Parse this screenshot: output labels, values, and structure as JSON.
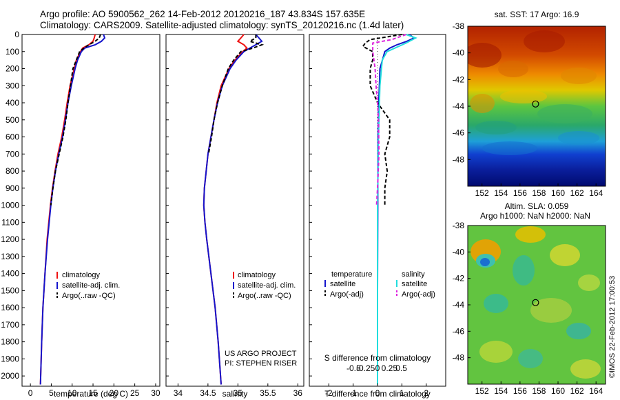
{
  "header": {
    "line1": "Argo profile: AO 5900562_262 14-Feb-2012 20120216_187 43.834S 157.635E",
    "line2": "Climatology: CARS2009. Satellite-adjusted climatology: synTS_20120216.nc (1.4d later)"
  },
  "depth_axis": {
    "ticks": [
      0,
      100,
      200,
      300,
      400,
      500,
      600,
      700,
      800,
      900,
      1000,
      1100,
      1200,
      1300,
      1400,
      1500,
      1600,
      1700,
      1800,
      1900,
      2000
    ],
    "range": [
      0,
      2060
    ]
  },
  "colors": {
    "climatology": "#ee1111",
    "satellite": "#1515cc",
    "argo": "#000000",
    "argo_adj": "#dd22dd",
    "sat_sal": "#22dddd"
  },
  "chart_data": [
    {
      "id": "temperature",
      "type": "line",
      "xlabel": "temperature (deg C)",
      "xlim": [
        -2,
        31
      ],
      "xticks": [
        0,
        5,
        10,
        15,
        20,
        25,
        30
      ],
      "legend": {
        "placement": "middle-right",
        "items": [
          "climatology",
          "satellite-adj. clim.",
          "Argo(..raw -QC)"
        ]
      },
      "series": [
        {
          "name": "climatology",
          "color": "#ee1111",
          "depth": [
            0,
            20,
            40,
            60,
            80,
            100,
            150,
            200,
            300,
            400,
            500,
            600,
            700,
            800,
            900,
            1000,
            1200,
            1400,
            1600,
            1800,
            2050
          ],
          "values": [
            15.5,
            15.3,
            15,
            14,
            12.5,
            12,
            11,
            10.5,
            9.5,
            8.8,
            8.2,
            7.5,
            6.6,
            5.9,
            5.3,
            4.8,
            4,
            3.5,
            3,
            2.7,
            2.4
          ]
        },
        {
          "name": "satellite-adj. clim.",
          "color": "#1515cc",
          "depth": [
            0,
            20,
            40,
            60,
            80,
            100,
            150,
            200,
            300,
            400,
            500,
            600,
            700,
            800,
            900,
            1000,
            1200,
            1400,
            1600,
            1800,
            2050
          ],
          "values": [
            17.5,
            17.8,
            17,
            15.5,
            13,
            12.2,
            11.3,
            10.7,
            9.8,
            9,
            8.4,
            7.7,
            6.8,
            6,
            5.4,
            4.9,
            4.1,
            3.5,
            3,
            2.7,
            2.4
          ]
        },
        {
          "name": "Argo(..raw -QC)",
          "color": "#000000",
          "dashed": true,
          "depth": [
            0,
            20,
            40,
            60,
            80,
            100,
            150,
            200,
            300,
            400,
            500,
            600,
            700,
            800,
            900,
            1000
          ],
          "values": [
            16.8,
            16.5,
            15.5,
            14,
            12.8,
            11.8,
            11,
            10.2,
            9.6,
            9,
            8.5,
            7.8,
            6.9,
            6,
            5.4,
            4.9
          ]
        }
      ]
    },
    {
      "id": "salinity",
      "type": "line",
      "xlabel": "salinity",
      "xlim": [
        33.8,
        36.1
      ],
      "xticks": [
        34,
        34.5,
        35,
        35.5,
        36
      ],
      "xticklabels": [
        "34",
        "34.5",
        "35",
        "35.5",
        "36"
      ],
      "legend": {
        "placement": "middle-right",
        "items": [
          "climatology",
          "satellite-adj. clim.",
          "Argo(..raw -QC)"
        ]
      },
      "credit": [
        "US ARGO PROJECT",
        "PI: STEPHEN RISER"
      ],
      "series": [
        {
          "name": "climatology",
          "color": "#ee1111",
          "depth": [
            0,
            20,
            40,
            60,
            80,
            100,
            150,
            200,
            300,
            400,
            500,
            600,
            700,
            800,
            900,
            1000,
            1100,
            1200,
            1400,
            1600,
            1800,
            2050
          ],
          "values": [
            35.1,
            35.05,
            35.0,
            35.1,
            35.15,
            35.08,
            34.95,
            34.85,
            34.72,
            34.65,
            34.6,
            34.55,
            34.5,
            34.47,
            34.44,
            34.43,
            34.45,
            34.48,
            34.55,
            34.62,
            34.67,
            34.72
          ]
        },
        {
          "name": "satellite-adj. clim.",
          "color": "#1515cc",
          "depth": [
            0,
            20,
            40,
            60,
            80,
            100,
            150,
            200,
            300,
            400,
            500,
            600,
            700,
            800,
            900,
            1000,
            1100,
            1200,
            1400,
            1600,
            1800,
            2050
          ],
          "values": [
            35.3,
            35.35,
            35.4,
            35.3,
            35.2,
            35.1,
            34.97,
            34.87,
            34.74,
            34.66,
            34.6,
            34.55,
            34.5,
            34.47,
            34.44,
            34.43,
            34.45,
            34.48,
            34.55,
            34.62,
            34.67,
            34.72
          ]
        },
        {
          "name": "Argo(..raw -QC)",
          "color": "#000000",
          "dashed": true,
          "depth": [
            0,
            20,
            40,
            60,
            80,
            100,
            150,
            200,
            300,
            400,
            500,
            600,
            700
          ],
          "values": [
            35.3,
            35.3,
            35.2,
            35.4,
            35.25,
            35.05,
            34.93,
            34.84,
            34.74,
            34.66,
            34.6,
            34.56,
            34.51
          ]
        }
      ]
    },
    {
      "id": "difference",
      "type": "line",
      "xlabel": "T difference from climatology",
      "x2label": "S difference from climatology",
      "xlim": [
        -2.8,
        2.8
      ],
      "xticks": [
        -2,
        -1,
        0,
        1,
        2
      ],
      "x2ticks": [
        -0.5,
        -0.25,
        0,
        0.25,
        0.5
      ],
      "x2ticklabels": [
        "-0.5",
        "-0.25",
        "0",
        "0.25",
        "0.5"
      ],
      "legend": {
        "placement": "middle",
        "temperature_title": "temperature",
        "salinity_title": "salinity",
        "items": [
          "satellite",
          "Argo(-adj)"
        ]
      },
      "series": [
        {
          "name": "T satellite",
          "color": "#1515cc",
          "depth": [
            0,
            20,
            40,
            60,
            80,
            100,
            150,
            200,
            400,
            600,
            1000,
            1500,
            2050
          ],
          "values": [
            1.3,
            1.5,
            1.2,
            0.8,
            0.5,
            0.3,
            0.2,
            0.1,
            0.05,
            0.02,
            0.01,
            0,
            0
          ]
        },
        {
          "name": "T Argo(-adj)",
          "color": "#000000",
          "dashed": true,
          "depth": [
            0,
            30,
            50,
            70,
            100,
            150,
            200,
            300,
            400,
            500,
            600,
            700,
            800,
            900,
            1000
          ],
          "values": [
            1,
            -0.3,
            -0.5,
            -0.6,
            -0.2,
            -0.2,
            -0.3,
            -0.3,
            0,
            0.5,
            0.5,
            0.3,
            0.4,
            0.3,
            0.3
          ]
        },
        {
          "name": "S satellite",
          "color": "#22dddd",
          "depth": [
            0,
            20,
            50,
            100,
            150,
            300,
            600,
            1000,
            2050
          ],
          "values": [
            0.6,
            0.8,
            0.6,
            0.2,
            0.1,
            0.05,
            0.02,
            0,
            0
          ]
        },
        {
          "name": "S Argo(-adj)",
          "color": "#dd22dd",
          "dashed": true,
          "depth": [
            0,
            30,
            50,
            100,
            200,
            300,
            400,
            500,
            700,
            900,
            1000
          ],
          "values": [
            0.6,
            0.3,
            -0.1,
            -0.1,
            -0.05,
            -0.03,
            0,
            0.02,
            0.03,
            0,
            -0.02
          ]
        }
      ]
    },
    {
      "id": "sst_map",
      "type": "heatmap",
      "title": "sat. SST: 17 Argo: 16.9",
      "xticks": [
        152,
        154,
        156,
        158,
        160,
        162,
        164
      ],
      "yticks": [
        -38,
        -40,
        -42,
        -44,
        -46,
        -48
      ],
      "xlim": [
        150.5,
        165
      ],
      "ylim": [
        -50,
        -38
      ],
      "marker": {
        "lon": 157.635,
        "lat": -43.834
      }
    },
    {
      "id": "sla_map",
      "type": "heatmap",
      "title_line1": "Altim. SLA: 0.059",
      "title_line2": "Argo h1000: NaN h2000: NaN",
      "xticks": [
        152,
        154,
        156,
        158,
        160,
        162,
        164
      ],
      "yticks": [
        -38,
        -40,
        -42,
        -44,
        -46,
        -48
      ],
      "xlim": [
        150.5,
        165
      ],
      "ylim": [
        -50,
        -38
      ],
      "marker": {
        "lon": 157.635,
        "lat": -43.834
      }
    }
  ],
  "watermark": "©IMOS 22-Feb-2012 17:00:53"
}
